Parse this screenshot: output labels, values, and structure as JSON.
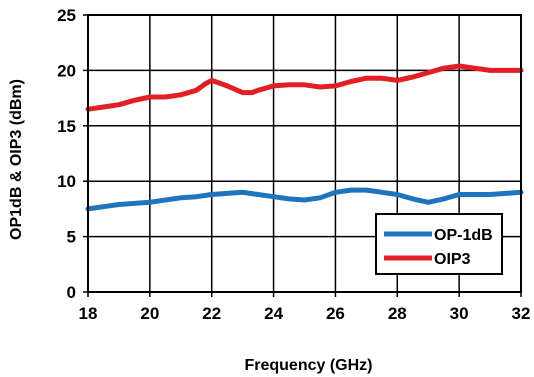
{
  "chart_data": {
    "type": "line",
    "title": "",
    "xlabel": "Frequency (GHz)",
    "ylabel": "OP1dB & OIP3 (dBm)",
    "xlim": [
      18,
      32
    ],
    "ylim": [
      0,
      25
    ],
    "xticks": [
      "18",
      "20",
      "22",
      "24",
      "26",
      "28",
      "30",
      "32"
    ],
    "yticks": [
      "0",
      "5",
      "10",
      "15",
      "20",
      "25"
    ],
    "grid": true,
    "legend_position": "bottom-right",
    "series": [
      {
        "name": "OP-1dB",
        "color": "#1f74c0",
        "x": [
          18,
          18.5,
          19,
          19.5,
          20,
          20.5,
          21,
          21.5,
          22,
          22.5,
          23,
          23.5,
          24,
          24.5,
          25,
          25.5,
          26,
          26.5,
          27,
          27.5,
          28,
          28.5,
          29,
          29.5,
          30,
          30.5,
          31,
          31.5,
          32
        ],
        "values": [
          7.5,
          7.7,
          7.9,
          8.0,
          8.1,
          8.3,
          8.5,
          8.6,
          8.8,
          8.9,
          9.0,
          8.8,
          8.6,
          8.4,
          8.3,
          8.5,
          9.0,
          9.2,
          9.2,
          9.0,
          8.8,
          8.4,
          8.1,
          8.4,
          8.8,
          8.8,
          8.8,
          8.9,
          9.0
        ]
      },
      {
        "name": "OIP3",
        "color": "#e31e24",
        "x": [
          18,
          18.5,
          19,
          19.5,
          20,
          20.5,
          21,
          21.5,
          21.8,
          22,
          22.5,
          23,
          23.3,
          23.5,
          24,
          24.5,
          25,
          25.5,
          26,
          26.5,
          27,
          27.5,
          28,
          28.5,
          29,
          29.5,
          30,
          30.5,
          31,
          31.5,
          32
        ],
        "values": [
          16.5,
          16.7,
          16.9,
          17.3,
          17.6,
          17.6,
          17.8,
          18.2,
          18.8,
          19.1,
          18.6,
          18.0,
          18.0,
          18.2,
          18.6,
          18.7,
          18.7,
          18.5,
          18.6,
          19.0,
          19.3,
          19.3,
          19.1,
          19.4,
          19.8,
          20.2,
          20.4,
          20.2,
          20.0,
          20.0,
          20.0
        ]
      }
    ]
  }
}
